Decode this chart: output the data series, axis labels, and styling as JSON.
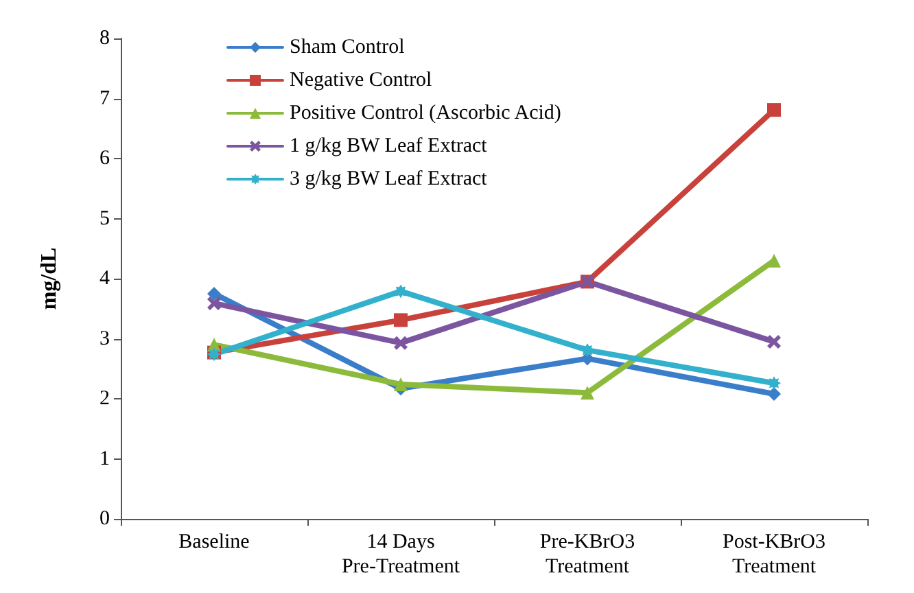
{
  "chart_data": {
    "type": "line",
    "ylabel": "mg/dL",
    "categories": [
      "Baseline",
      "14 Days\nPre-Treatment",
      "Pre-KBrO3\nTreatment",
      "Post-KBrO3\nTreatment"
    ],
    "series": [
      {
        "name": "Sham Control",
        "color": "#3a7dc9",
        "marker": "diamond",
        "values": [
          3.75,
          2.17,
          2.67,
          2.08
        ]
      },
      {
        "name": "Negative Control",
        "color": "#c9413b",
        "marker": "square",
        "values": [
          2.77,
          3.31,
          3.95,
          6.81
        ]
      },
      {
        "name": "Positive Control (Ascorbic Acid)",
        "color": "#8cbb3c",
        "marker": "triangle",
        "values": [
          2.9,
          2.24,
          2.1,
          4.3
        ]
      },
      {
        "name": "1 g/kg BW Leaf Extract",
        "color": "#7b559f",
        "marker": "cross",
        "values": [
          3.59,
          2.93,
          3.95,
          2.95
        ]
      },
      {
        "name": "3 g/kg BW Leaf Extract",
        "color": "#33b0cc",
        "marker": "star",
        "values": [
          2.74,
          3.79,
          2.81,
          2.26
        ]
      }
    ],
    "ylim": [
      0,
      8
    ],
    "yticks": [
      0,
      1,
      2,
      3,
      4,
      5,
      6,
      7,
      8
    ],
    "grid": false,
    "legend": "top left",
    "line_style": "solid"
  }
}
